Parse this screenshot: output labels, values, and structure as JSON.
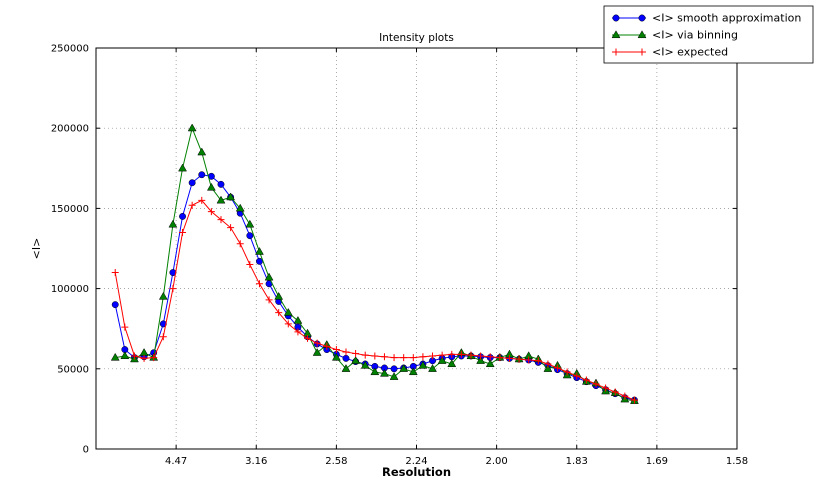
{
  "figure": {
    "background": "#ffffff"
  },
  "chart_data": {
    "type": "line",
    "title": "Intensity plots",
    "xlabel": "Resolution",
    "ylabel": "<I>",
    "grid": "dotted",
    "legend_position": "upper right (overlapping top of axes)",
    "x_axis": {
      "note_unit": "resolution ticks spaced linearly in 1/d^2",
      "lim": [
        0.0,
        0.4
      ],
      "tick_positions": [
        0.05,
        0.1,
        0.15,
        0.2,
        0.25,
        0.3,
        0.35,
        0.4
      ],
      "tick_labels": [
        "4.47",
        "3.16",
        "2.58",
        "2.24",
        "2.00",
        "1.83",
        "1.69",
        "1.58"
      ]
    },
    "y_axis": {
      "lim": [
        0,
        250000
      ],
      "tick_positions": [
        0,
        50000,
        100000,
        150000,
        200000,
        250000
      ],
      "tick_labels": [
        "0",
        "50000",
        "100000",
        "150000",
        "200000",
        "250000"
      ]
    },
    "x": [
      0.012,
      0.018,
      0.024,
      0.03,
      0.036,
      0.042,
      0.048,
      0.054,
      0.06,
      0.066,
      0.072,
      0.078,
      0.084,
      0.09,
      0.096,
      0.102,
      0.108,
      0.114,
      0.12,
      0.126,
      0.132,
      0.138,
      0.144,
      0.15,
      0.156,
      0.162,
      0.168,
      0.174,
      0.18,
      0.186,
      0.192,
      0.198,
      0.204,
      0.21,
      0.216,
      0.222,
      0.228,
      0.234,
      0.24,
      0.246,
      0.252,
      0.258,
      0.264,
      0.27,
      0.276,
      0.282,
      0.288,
      0.294,
      0.3,
      0.306,
      0.312,
      0.318,
      0.324,
      0.33,
      0.336
    ],
    "series": [
      {
        "name": "<I> smooth approximation",
        "color": "#0000ff",
        "marker": "circle",
        "values": [
          90000,
          62000,
          57000,
          57500,
          60000,
          78000,
          110000,
          145000,
          166000,
          171000,
          170000,
          165000,
          157000,
          147000,
          133000,
          117000,
          103000,
          92000,
          83000,
          76000,
          70000,
          65500,
          62000,
          59000,
          56500,
          54500,
          53000,
          51500,
          50500,
          50000,
          50500,
          51500,
          53000,
          55000,
          56500,
          57500,
          58000,
          58000,
          57500,
          57000,
          57000,
          56500,
          56000,
          55500,
          54000,
          52000,
          49500,
          47000,
          44500,
          42000,
          39500,
          37000,
          34500,
          32000,
          30500
        ]
      },
      {
        "name": "<I> via binning",
        "color": "#008000",
        "marker": "triangle",
        "values": [
          57000,
          58000,
          56000,
          60000,
          57000,
          95000,
          140000,
          175000,
          200000,
          185000,
          163000,
          155000,
          157000,
          150000,
          140000,
          123000,
          107000,
          95000,
          85000,
          80000,
          72000,
          60000,
          65000,
          57000,
          50000,
          55000,
          52000,
          48000,
          47000,
          45000,
          50000,
          48000,
          52000,
          50000,
          55000,
          53000,
          60000,
          58000,
          55000,
          53000,
          57000,
          59000,
          56000,
          58000,
          56000,
          50000,
          52000,
          46000,
          47000,
          42000,
          41000,
          36000,
          35000,
          31000,
          30000
        ]
      },
      {
        "name": "<I> expected",
        "color": "#ff0000",
        "marker": "plus",
        "values": [
          110000,
          76000,
          58000,
          56500,
          57000,
          70000,
          100000,
          135000,
          152000,
          155000,
          148000,
          143000,
          138000,
          128000,
          115000,
          103000,
          93000,
          85000,
          78000,
          73000,
          69000,
          66000,
          64000,
          62000,
          60500,
          59500,
          58500,
          58000,
          57500,
          57000,
          57000,
          57000,
          57500,
          58000,
          58500,
          59000,
          59000,
          58500,
          58000,
          57500,
          57000,
          56500,
          56000,
          55500,
          55000,
          53000,
          50500,
          48000,
          45500,
          43000,
          40500,
          38000,
          35500,
          33000,
          30500
        ]
      }
    ]
  }
}
